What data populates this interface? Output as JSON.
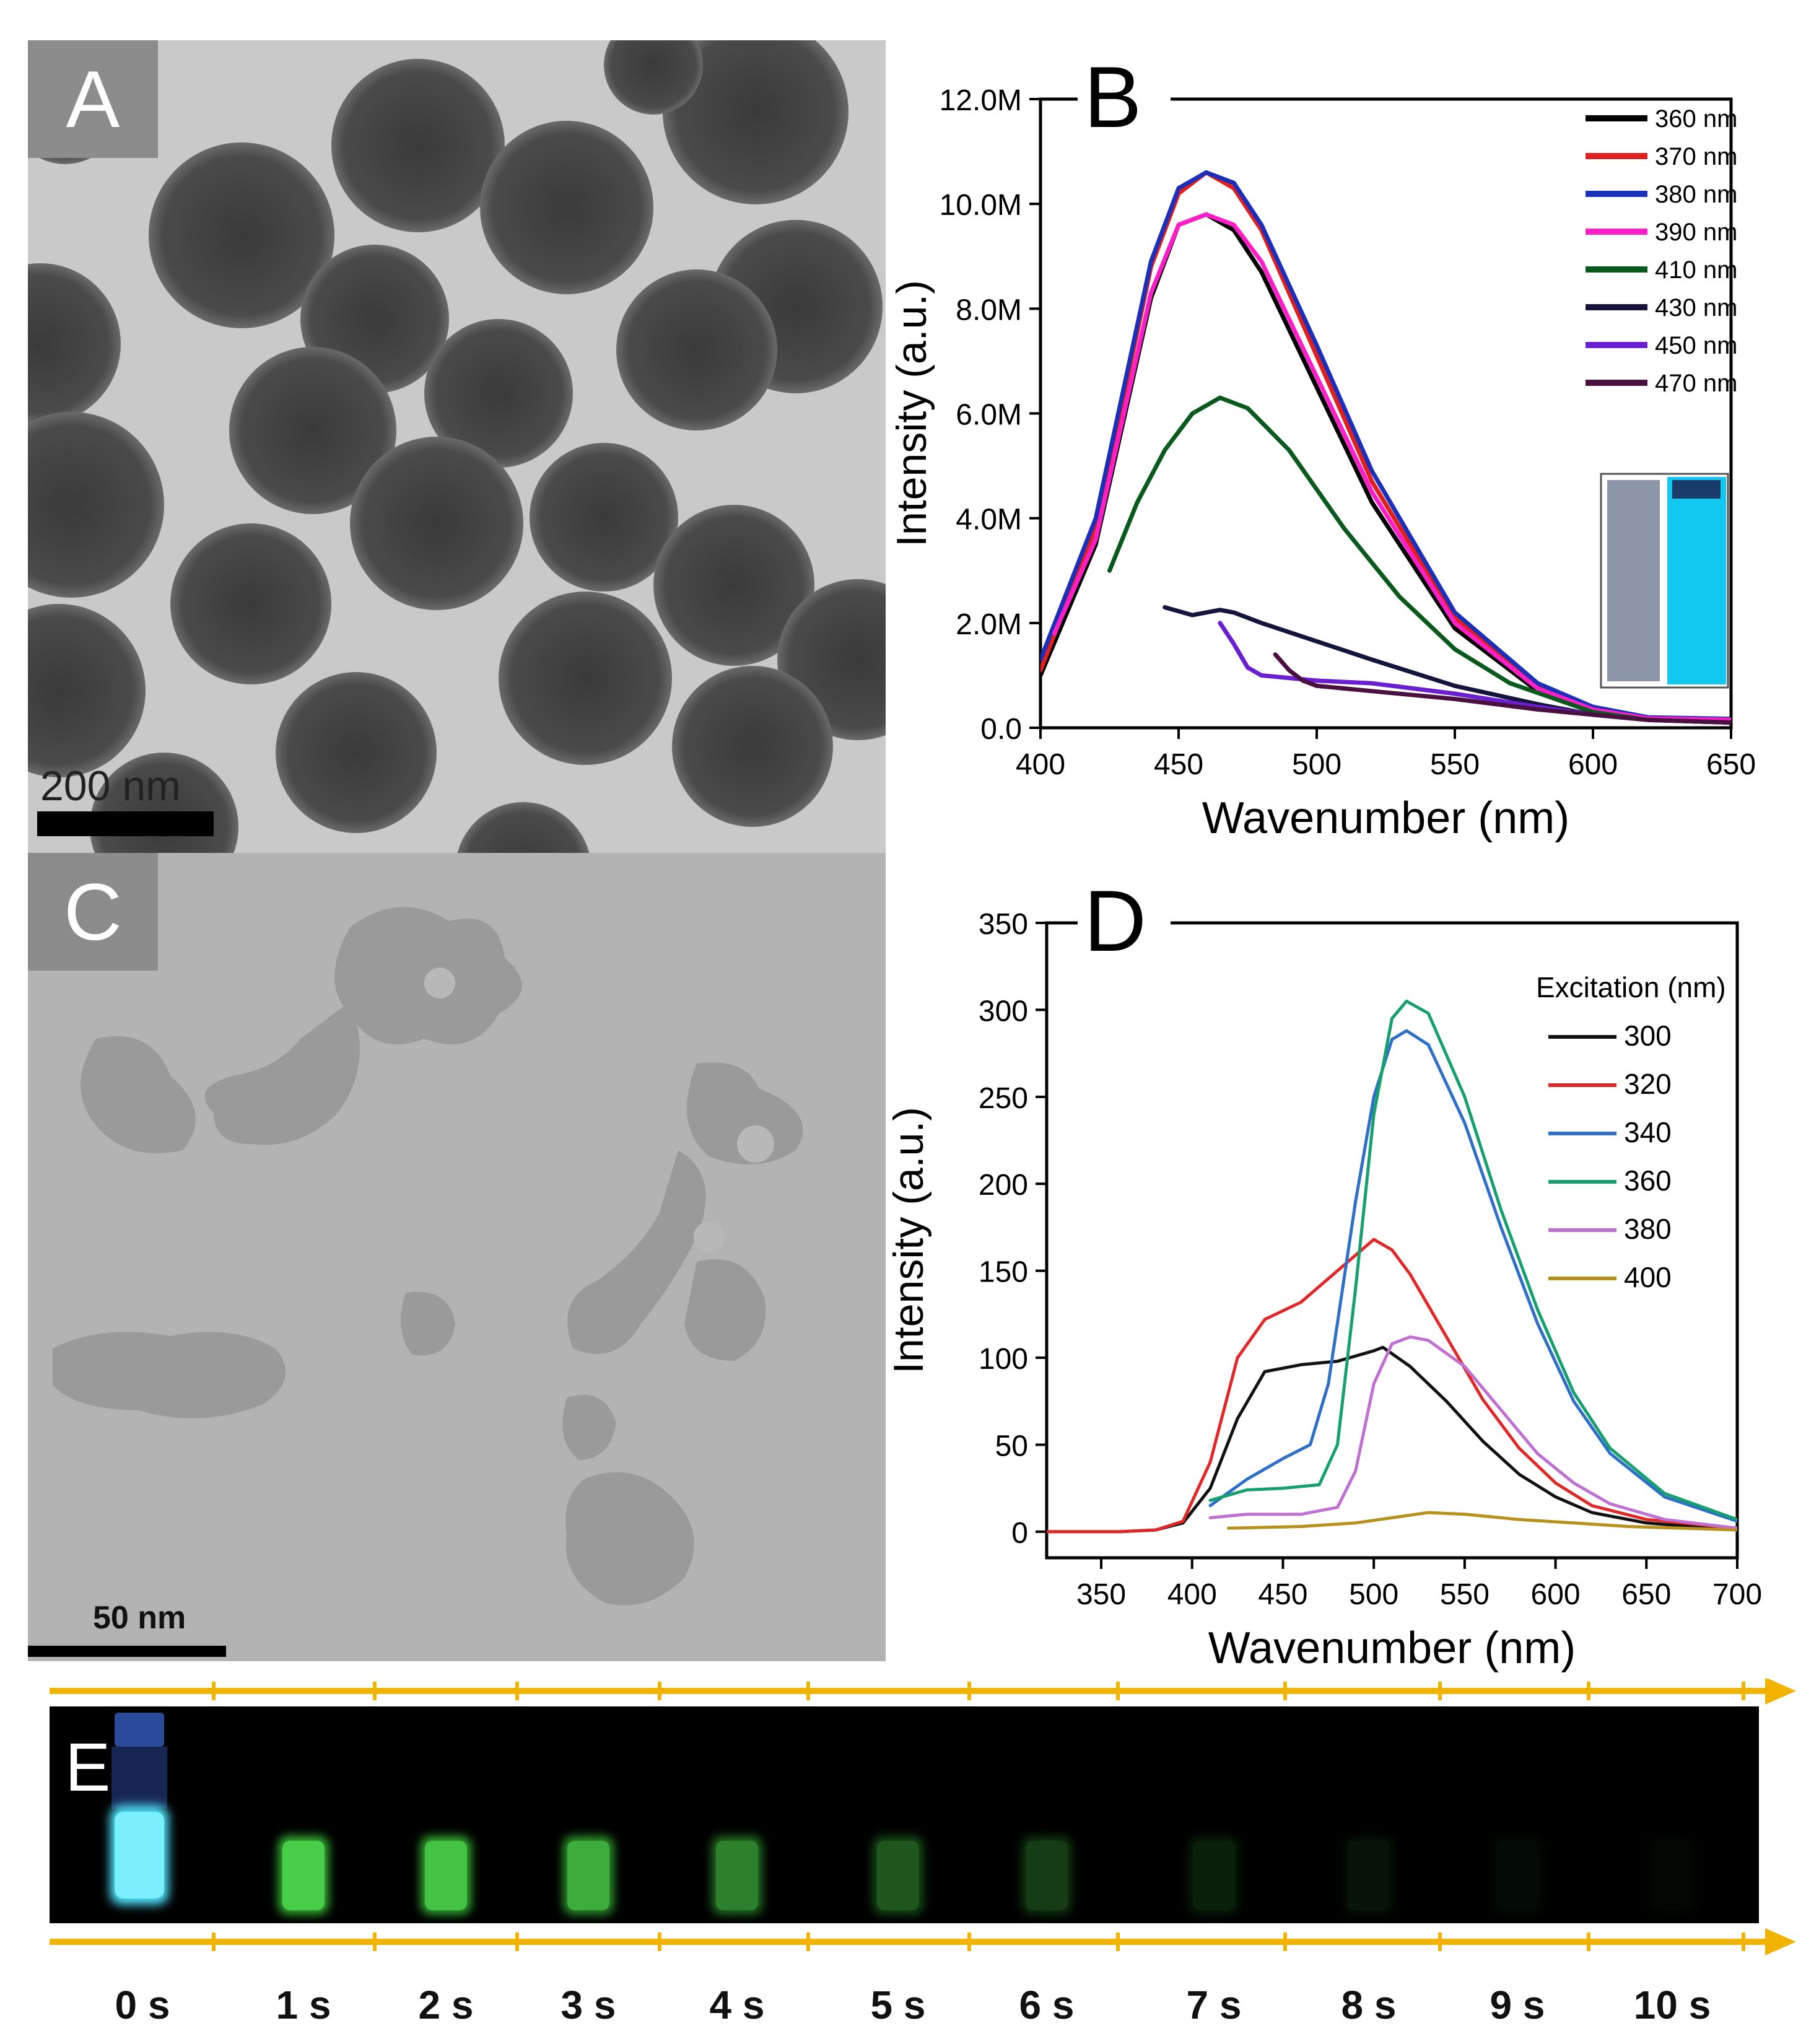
{
  "panels": {
    "a": {
      "label": "A",
      "scale_bar": "200 nm"
    },
    "c": {
      "label": "C",
      "scale_bar": "50 nm"
    },
    "e": {
      "label": "E",
      "time_labels": [
        "0 s",
        "1 s",
        "2 s",
        "3 s",
        "4 s",
        "5 s",
        "6 s",
        "7 s",
        "8 s",
        "9 s",
        "10 s"
      ],
      "glow_level": [
        1.0,
        0.95,
        0.9,
        0.8,
        0.6,
        0.4,
        0.28,
        0.15,
        0.09,
        0.05,
        0.03
      ],
      "colors": {
        "frame_bg": "#000000",
        "arrow": "#f0b400",
        "vial_0s": "#4fe6ff",
        "vial_glow": "#3cc83c"
      }
    }
  },
  "chart_data": [
    {
      "panel_label": "B",
      "type": "line",
      "xlabel": "Wavenumber (nm)",
      "ylabel": "Intensity (a.u.)",
      "xlim": [
        400,
        650
      ],
      "ylim": [
        0,
        12000000
      ],
      "xticks": [
        400,
        450,
        500,
        550,
        600,
        650
      ],
      "yticks": [
        0,
        2000000,
        4000000,
        6000000,
        8000000,
        10000000,
        12000000
      ],
      "ytick_labels": [
        "0.0",
        "2.0M",
        "4.0M",
        "6.0M",
        "8.0M",
        "10.0M",
        "12.0M"
      ],
      "legend_position": "top-right",
      "series": [
        {
          "name": "360 nm",
          "color": "#000000",
          "x": [
            400,
            420,
            440,
            450,
            460,
            470,
            480,
            500,
            520,
            550,
            580,
            600,
            620,
            650
          ],
          "y": [
            1000000,
            3500000,
            8200000,
            9600000,
            9800000,
            9500000,
            8700000,
            6500000,
            4300000,
            1900000,
            700000,
            300000,
            150000,
            150000
          ]
        },
        {
          "name": "370 nm",
          "color": "#e02020",
          "x": [
            400,
            420,
            440,
            450,
            460,
            470,
            480,
            500,
            520,
            550,
            580,
            600,
            620,
            650
          ],
          "y": [
            1100000,
            3800000,
            8800000,
            10200000,
            10600000,
            10300000,
            9500000,
            7100000,
            4700000,
            2100000,
            800000,
            350000,
            180000,
            160000
          ]
        },
        {
          "name": "380 nm",
          "color": "#1c2fb8",
          "x": [
            400,
            420,
            440,
            450,
            460,
            470,
            480,
            500,
            520,
            550,
            580,
            600,
            620,
            650
          ],
          "y": [
            1300000,
            4000000,
            8900000,
            10300000,
            10600000,
            10400000,
            9600000,
            7300000,
            4900000,
            2200000,
            850000,
            400000,
            200000,
            170000
          ]
        },
        {
          "name": "390 nm",
          "color": "#ff1fc8",
          "x": [
            405,
            420,
            440,
            450,
            460,
            470,
            480,
            500,
            520,
            550,
            580,
            600,
            620,
            650
          ],
          "y": [
            1800000,
            3600000,
            8300000,
            9600000,
            9800000,
            9600000,
            8900000,
            6700000,
            4500000,
            2000000,
            750000,
            350000,
            180000,
            150000
          ]
        },
        {
          "name": "410 nm",
          "color": "#0a5a1e",
          "x": [
            425,
            435,
            445,
            455,
            465,
            475,
            490,
            510,
            530,
            550,
            570,
            600,
            620,
            650
          ],
          "y": [
            3000000,
            4300000,
            5300000,
            6000000,
            6300000,
            6100000,
            5300000,
            3800000,
            2500000,
            1500000,
            850000,
            300000,
            150000,
            100000
          ]
        },
        {
          "name": "430 nm",
          "color": "#14143c",
          "x": [
            445,
            455,
            465,
            470,
            480,
            500,
            520,
            550,
            580,
            600,
            620,
            650
          ],
          "y": [
            2300000,
            2150000,
            2250000,
            2200000,
            2000000,
            1650000,
            1300000,
            800000,
            450000,
            250000,
            150000,
            100000
          ]
        },
        {
          "name": "450 nm",
          "color": "#6a1fd0",
          "x": [
            465,
            470,
            475,
            480,
            490,
            500,
            520,
            550,
            580,
            600,
            620,
            650
          ],
          "y": [
            2000000,
            1600000,
            1150000,
            1000000,
            950000,
            900000,
            850000,
            650000,
            400000,
            250000,
            150000,
            100000
          ]
        },
        {
          "name": "470 nm",
          "color": "#4a1040",
          "x": [
            485,
            490,
            495,
            500,
            520,
            550,
            580,
            600,
            620,
            650
          ],
          "y": [
            1400000,
            1100000,
            900000,
            800000,
            700000,
            550000,
            350000,
            250000,
            150000,
            100000
          ]
        }
      ]
    },
    {
      "panel_label": "D",
      "type": "line",
      "xlabel": "Wavenumber (nm)",
      "ylabel": "Intensity (a.u.)",
      "xlim": [
        320,
        700
      ],
      "ylim": [
        -15,
        350
      ],
      "xticks": [
        350,
        400,
        450,
        500,
        550,
        600,
        650,
        700
      ],
      "yticks": [
        0,
        50,
        100,
        150,
        200,
        250,
        300,
        350
      ],
      "legend_title": "Excitation (nm)",
      "legend_position": "top-right",
      "series": [
        {
          "name": "300",
          "color": "#111111",
          "x": [
            320,
            360,
            380,
            395,
            410,
            425,
            440,
            460,
            480,
            500,
            505,
            520,
            540,
            560,
            580,
            600,
            620,
            650,
            700
          ],
          "y": [
            0,
            0,
            1,
            5,
            25,
            65,
            92,
            96,
            98,
            104,
            106,
            95,
            75,
            52,
            33,
            20,
            11,
            5,
            1
          ]
        },
        {
          "name": "320",
          "color": "#e02828",
          "x": [
            320,
            360,
            380,
            395,
            410,
            425,
            440,
            460,
            480,
            500,
            510,
            520,
            540,
            560,
            580,
            600,
            620,
            650,
            700
          ],
          "y": [
            0,
            0,
            1,
            6,
            40,
            100,
            122,
            132,
            150,
            168,
            162,
            148,
            112,
            76,
            48,
            28,
            15,
            7,
            2
          ]
        },
        {
          "name": "340",
          "color": "#2e6fc8",
          "x": [
            410,
            430,
            450,
            465,
            475,
            490,
            500,
            510,
            518,
            530,
            550,
            570,
            590,
            610,
            630,
            660,
            700
          ],
          "y": [
            15,
            30,
            42,
            50,
            85,
            190,
            250,
            283,
            288,
            280,
            235,
            175,
            120,
            75,
            45,
            20,
            6
          ]
        },
        {
          "name": "360",
          "color": "#16a06e",
          "x": [
            410,
            430,
            450,
            470,
            480,
            490,
            500,
            510,
            518,
            530,
            550,
            570,
            590,
            610,
            630,
            660,
            700
          ],
          "y": [
            18,
            24,
            25,
            27,
            50,
            140,
            240,
            295,
            305,
            298,
            250,
            185,
            128,
            80,
            48,
            22,
            7
          ]
        },
        {
          "name": "380",
          "color": "#c070d0",
          "x": [
            410,
            430,
            460,
            480,
            490,
            500,
            510,
            520,
            530,
            550,
            570,
            590,
            610,
            630,
            660,
            700
          ],
          "y": [
            8,
            10,
            10,
            14,
            35,
            85,
            108,
            112,
            110,
            95,
            70,
            45,
            28,
            16,
            7,
            2
          ]
        },
        {
          "name": "400",
          "color": "#b8901c",
          "x": [
            420,
            460,
            490,
            510,
            530,
            550,
            580,
            610,
            640,
            700
          ],
          "y": [
            2,
            3,
            5,
            8,
            11,
            10,
            7,
            5,
            3,
            1
          ]
        }
      ]
    }
  ]
}
